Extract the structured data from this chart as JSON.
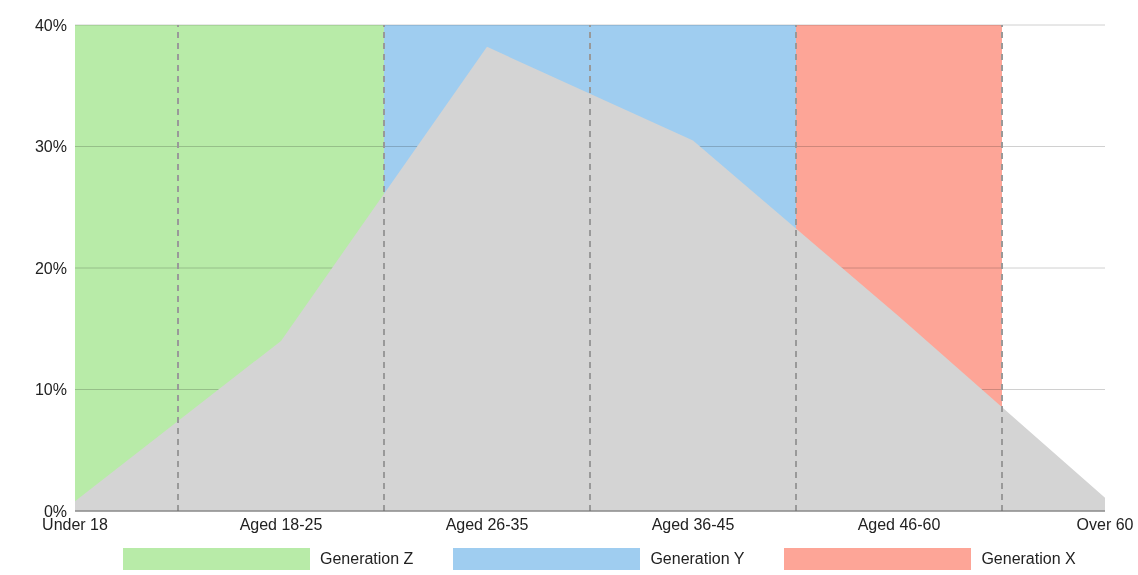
{
  "chart_data": {
    "type": "area",
    "categories": [
      "Under 18",
      "Aged 18-25",
      "Aged 26-35",
      "Aged 36-45",
      "Aged 46-60",
      "Over 60"
    ],
    "values": [
      0.8,
      14,
      38.2,
      30.5,
      16,
      1.1
    ],
    "color": "#d4d4d4",
    "ylim": [
      0,
      40
    ],
    "yticks": [
      {
        "value": 0,
        "label": "0%"
      },
      {
        "value": 10,
        "label": "10%"
      },
      {
        "value": 20,
        "label": "20%"
      },
      {
        "value": 30,
        "label": "30%"
      },
      {
        "value": 40,
        "label": "40%"
      }
    ],
    "grid": "y",
    "bands": [
      {
        "axis": "x",
        "from": "Under 18",
        "to": "Aged 18-25",
        "label": "Generation Z",
        "color": "#b8eba8"
      },
      {
        "axis": "x",
        "from": "Aged 26-35",
        "to": "Aged 36-45",
        "label": "Generation Y",
        "color": "#9fcdf0"
      },
      {
        "axis": "x",
        "from": "Aged 46-60",
        "to": "Aged 46-60",
        "label": "Generation X",
        "color": "#fda597"
      }
    ]
  }
}
